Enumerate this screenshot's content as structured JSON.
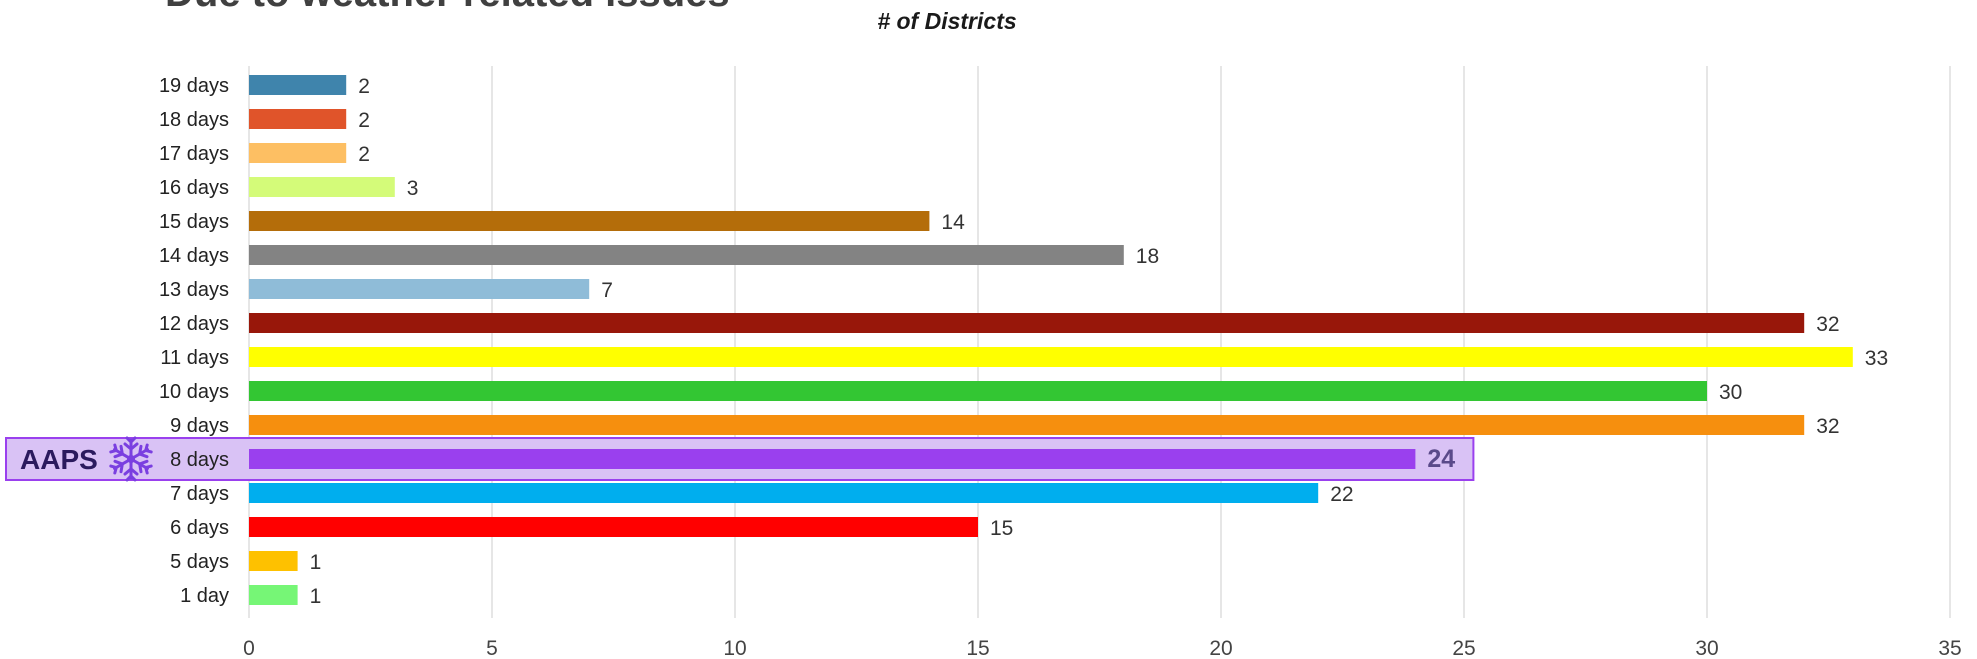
{
  "chart_data": {
    "type": "bar",
    "orientation": "horizontal",
    "title": "Due to weather related issues",
    "xlabel": "# of Districts",
    "ylabel": "",
    "xlim": [
      0,
      35
    ],
    "xticks": [
      0,
      5,
      10,
      15,
      20,
      25,
      30,
      35
    ],
    "grid": true,
    "categories": [
      "19 days",
      "18 days",
      "17 days",
      "16 days",
      "15 days",
      "14 days",
      "13 days",
      "12 days",
      "11 days",
      "10 days",
      "9 days",
      "8 days",
      "7 days",
      "6 days",
      "5 days",
      "1 day"
    ],
    "values": [
      2,
      2,
      2,
      3,
      14,
      18,
      7,
      32,
      33,
      30,
      32,
      24,
      22,
      15,
      1,
      1
    ],
    "colors": [
      "#3f84ac",
      "#e0542a",
      "#fdbf63",
      "#d4fb79",
      "#b46d0a",
      "#838383",
      "#8fbcd8",
      "#98170a",
      "#ffff00",
      "#33c633",
      "#f68f0e",
      "#9a40ee",
      "#00aeee",
      "#ff0000",
      "#fec100",
      "#76f676"
    ],
    "highlight": {
      "category": "8 days",
      "label": "AAPS",
      "icon": "snowflake-icon",
      "fill": "#d9c2f5",
      "border": "#9a40ee"
    }
  }
}
